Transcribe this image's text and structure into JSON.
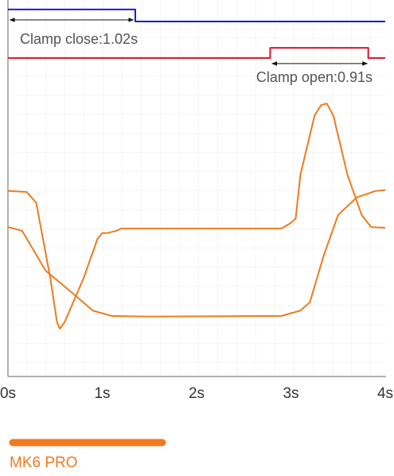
{
  "chart_data": {
    "type": "line",
    "xlim": [
      0,
      4
    ],
    "xticks": [
      {
        "value": 0,
        "label": "0s"
      },
      {
        "value": 1,
        "label": "1s"
      },
      {
        "value": 2,
        "label": "2s"
      },
      {
        "value": 3,
        "label": "3s"
      },
      {
        "value": 4,
        "label": "4s"
      }
    ],
    "ylim": [
      0,
      100
    ],
    "grid": true,
    "series": [
      {
        "color": "#1a1adf",
        "x": [
          0,
          1.35,
          1.35,
          4
        ],
        "values": [
          97.5,
          97.5,
          94.3,
          94.3
        ]
      },
      {
        "color": "#e0102a",
        "x": [
          0,
          2.78,
          2.78,
          3.82,
          3.82,
          4
        ],
        "values": [
          84.6,
          84.6,
          87.3,
          87.3,
          84.6,
          84.6
        ]
      },
      {
        "color": "#f07a1e",
        "x": [
          0,
          0.2,
          0.3,
          0.45,
          0.52,
          0.55,
          0.6,
          0.8,
          0.95,
          1.0,
          1.05,
          1.15,
          1.2,
          2.9,
          3.0,
          3.05,
          3.1,
          3.25,
          3.32,
          3.38,
          3.45,
          3.6,
          3.75,
          3.85,
          4.0
        ],
        "values": [
          49.3,
          49.0,
          46.1,
          26.0,
          14.4,
          12.7,
          14.4,
          26.0,
          36.6,
          38.1,
          38.1,
          38.7,
          39.3,
          39.3,
          40.8,
          41.9,
          53.5,
          69.3,
          72.1,
          72.5,
          69.3,
          53.5,
          42.9,
          39.7,
          39.5
        ]
      },
      {
        "color": "#f07a1e",
        "x": [
          0,
          0.15,
          0.4,
          0.7,
          0.9,
          1.1,
          1.5,
          2.9,
          3.1,
          3.2,
          3.35,
          3.5,
          3.7,
          3.9,
          4.0
        ],
        "values": [
          39.7,
          38.7,
          28.1,
          21.8,
          17.5,
          16.1,
          15.9,
          16.1,
          17.5,
          19.7,
          32.3,
          42.9,
          47.6,
          49.3,
          49.5
        ]
      }
    ],
    "annotations": [
      {
        "text": "Clamp close:1.02s",
        "from": 0.02,
        "to": 1.33
      },
      {
        "text": "Clamp open:0.91s",
        "from": 2.8,
        "to": 3.81
      }
    ],
    "legend": {
      "label": "MK6 PRO",
      "color": "#f07a1e"
    }
  }
}
